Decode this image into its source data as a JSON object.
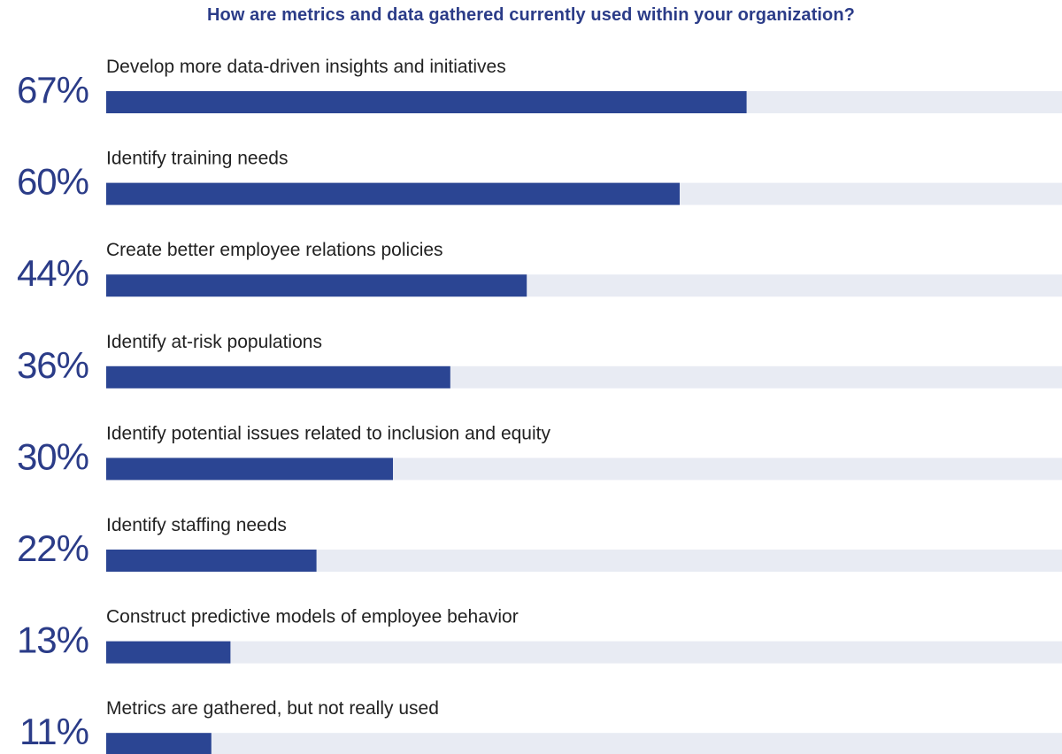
{
  "chart_data": {
    "type": "bar",
    "orientation": "horizontal",
    "title": "How are metrics and data gathered currently used within your organization?",
    "xlim": [
      0,
      100
    ],
    "grid": false,
    "legend": "none",
    "categories": [
      "Develop more data-driven insights and initiatives",
      "Identify training needs",
      "Create better employee relations policies",
      "Identify at-risk populations",
      "Identify potential issues related to inclusion and equity",
      "Identify staffing needs",
      "Construct predictive models of employee behavior",
      "Metrics are gathered, but not really used"
    ],
    "values": [
      67,
      60,
      44,
      36,
      30,
      22,
      13,
      11
    ],
    "value_labels": [
      "67%",
      "60%",
      "44%",
      "36%",
      "30%",
      "22%",
      "13%",
      "11%"
    ],
    "colors": {
      "bar": "#2b4593",
      "track": "#e8ebf3",
      "value_text": "#2b3c88",
      "label_text": "#222222"
    }
  }
}
